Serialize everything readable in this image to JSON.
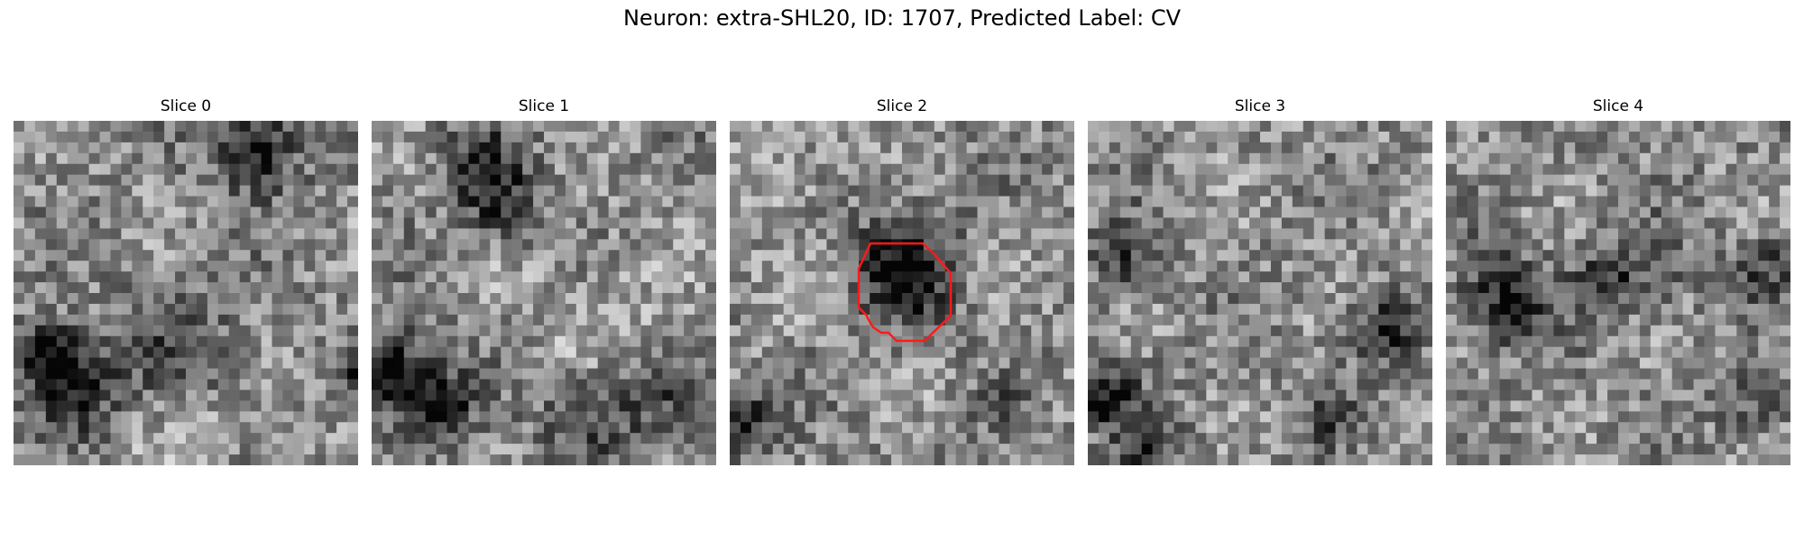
{
  "figure": {
    "title": "Neuron: extra-SHL20, ID: 1707, Predicted Label: CV"
  },
  "slices": [
    {
      "title": "Slice 0",
      "has_contour": false
    },
    {
      "title": "Slice 1",
      "has_contour": false
    },
    {
      "title": "Slice 2",
      "has_contour": true
    },
    {
      "title": "Slice 3",
      "has_contour": false
    },
    {
      "title": "Slice 4",
      "has_contour": false
    }
  ],
  "colors": {
    "contour": "#ff1a1a",
    "colormap": "grayscale"
  }
}
